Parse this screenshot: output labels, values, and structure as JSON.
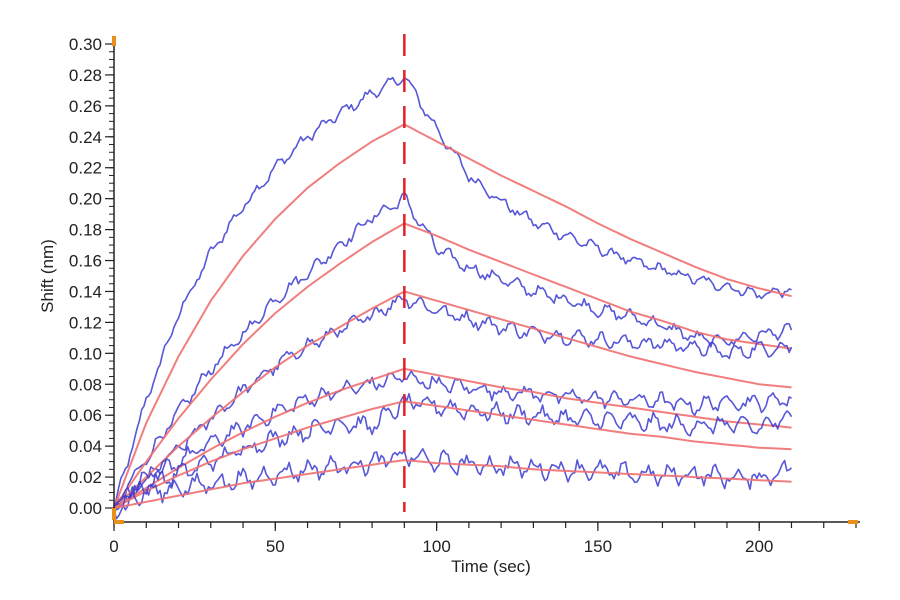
{
  "chart_data": {
    "type": "line",
    "title": "",
    "xlabel": "Time (sec)",
    "ylabel": "Shift (nm)",
    "xlim": [
      0,
      230
    ],
    "ylim": [
      0.0,
      0.3
    ],
    "x_ticks": [
      0,
      50,
      100,
      150,
      200
    ],
    "x_tick_labels": [
      "0",
      "50",
      "100",
      "150",
      "200"
    ],
    "y_ticks": [
      0.0,
      0.02,
      0.04,
      0.06,
      0.08,
      0.1,
      0.12,
      0.14,
      0.16,
      0.18,
      0.2,
      0.22,
      0.24,
      0.26,
      0.28,
      0.3
    ],
    "y_tick_labels": [
      "0.00",
      "0.02",
      "0.04",
      "0.06",
      "0.08",
      "0.10",
      "0.12",
      "0.14",
      "0.16",
      "0.18",
      "0.20",
      "0.22",
      "0.24",
      "0.26",
      "0.28",
      "0.30"
    ],
    "grid": false,
    "legend": "none",
    "annotations": [
      {
        "type": "vertical-dashed-line",
        "x": 90,
        "color": "#e0202a"
      }
    ],
    "colors": {
      "data": "#3a3ad0",
      "fit": "#f07070",
      "marker": "#e0202a",
      "axis": "#222222",
      "axis_end": "#e8901a"
    },
    "x": [
      0,
      10,
      20,
      30,
      40,
      50,
      60,
      70,
      80,
      90,
      100,
      110,
      120,
      130,
      140,
      150,
      160,
      170,
      180,
      190,
      200,
      210
    ],
    "series": [
      {
        "name": "data-1",
        "kind": "data",
        "values": [
          0.0,
          0.07,
          0.125,
          0.165,
          0.195,
          0.22,
          0.24,
          0.255,
          0.268,
          0.279,
          0.245,
          0.215,
          0.198,
          0.185,
          0.176,
          0.168,
          0.16,
          0.154,
          0.148,
          0.143,
          0.138,
          0.141
        ]
      },
      {
        "name": "fit-1",
        "kind": "fit",
        "values": [
          0.0,
          0.055,
          0.098,
          0.134,
          0.163,
          0.187,
          0.207,
          0.223,
          0.237,
          0.248,
          0.237,
          0.226,
          0.215,
          0.205,
          0.195,
          0.184,
          0.174,
          0.165,
          0.156,
          0.148,
          0.142,
          0.137
        ]
      },
      {
        "name": "data-2",
        "kind": "data",
        "values": [
          0.0,
          0.032,
          0.062,
          0.09,
          0.112,
          0.135,
          0.152,
          0.17,
          0.188,
          0.2,
          0.168,
          0.155,
          0.148,
          0.14,
          0.135,
          0.128,
          0.124,
          0.118,
          0.11,
          0.108,
          0.112,
          0.115
        ]
      },
      {
        "name": "fit-2",
        "kind": "fit",
        "values": [
          0.0,
          0.03,
          0.058,
          0.083,
          0.106,
          0.126,
          0.143,
          0.158,
          0.172,
          0.184,
          0.176,
          0.167,
          0.159,
          0.151,
          0.143,
          0.135,
          0.127,
          0.121,
          0.114,
          0.109,
          0.106,
          0.103
        ]
      },
      {
        "name": "data-3",
        "kind": "data",
        "values": [
          0.0,
          0.018,
          0.038,
          0.058,
          0.076,
          0.092,
          0.105,
          0.115,
          0.125,
          0.136,
          0.128,
          0.122,
          0.117,
          0.113,
          0.111,
          0.109,
          0.107,
          0.106,
          0.104,
          0.1,
          0.103,
          0.104
        ]
      },
      {
        "name": "fit-3",
        "kind": "fit",
        "values": [
          0.0,
          0.02,
          0.04,
          0.058,
          0.075,
          0.091,
          0.105,
          0.117,
          0.129,
          0.14,
          0.134,
          0.128,
          0.122,
          0.116,
          0.11,
          0.104,
          0.098,
          0.093,
          0.088,
          0.084,
          0.08,
          0.078
        ]
      },
      {
        "name": "data-4",
        "kind": "data",
        "values": [
          0.0,
          0.02,
          0.03,
          0.042,
          0.052,
          0.062,
          0.07,
          0.076,
          0.08,
          0.085,
          0.08,
          0.078,
          0.075,
          0.074,
          0.072,
          0.071,
          0.07,
          0.069,
          0.066,
          0.069,
          0.068,
          0.071
        ]
      },
      {
        "name": "fit-4",
        "kind": "fit",
        "values": [
          0.0,
          0.013,
          0.026,
          0.038,
          0.049,
          0.059,
          0.068,
          0.076,
          0.083,
          0.09,
          0.086,
          0.082,
          0.078,
          0.075,
          0.071,
          0.068,
          0.065,
          0.062,
          0.059,
          0.056,
          0.054,
          0.052
        ]
      },
      {
        "name": "data-5",
        "kind": "data",
        "values": [
          0.0,
          0.015,
          0.022,
          0.03,
          0.038,
          0.045,
          0.05,
          0.055,
          0.053,
          0.068,
          0.066,
          0.063,
          0.061,
          0.06,
          0.058,
          0.057,
          0.056,
          0.054,
          0.053,
          0.054,
          0.052,
          0.059
        ]
      },
      {
        "name": "fit-5",
        "kind": "fit",
        "values": [
          0.0,
          0.011,
          0.021,
          0.03,
          0.038,
          0.045,
          0.052,
          0.058,
          0.064,
          0.069,
          0.066,
          0.063,
          0.06,
          0.057,
          0.054,
          0.051,
          0.048,
          0.046,
          0.043,
          0.041,
          0.039,
          0.038
        ]
      },
      {
        "name": "data-6",
        "kind": "data",
        "values": [
          0.0,
          0.01,
          0.013,
          0.016,
          0.018,
          0.022,
          0.025,
          0.027,
          0.029,
          0.034,
          0.03,
          0.028,
          0.027,
          0.026,
          0.025,
          0.024,
          0.022,
          0.021,
          0.022,
          0.02,
          0.019,
          0.026
        ]
      },
      {
        "name": "fit-6",
        "kind": "fit",
        "values": [
          0.0,
          0.004,
          0.008,
          0.012,
          0.016,
          0.019,
          0.022,
          0.025,
          0.028,
          0.031,
          0.029,
          0.028,
          0.027,
          0.025,
          0.024,
          0.023,
          0.022,
          0.021,
          0.02,
          0.019,
          0.018,
          0.017
        ]
      }
    ]
  }
}
